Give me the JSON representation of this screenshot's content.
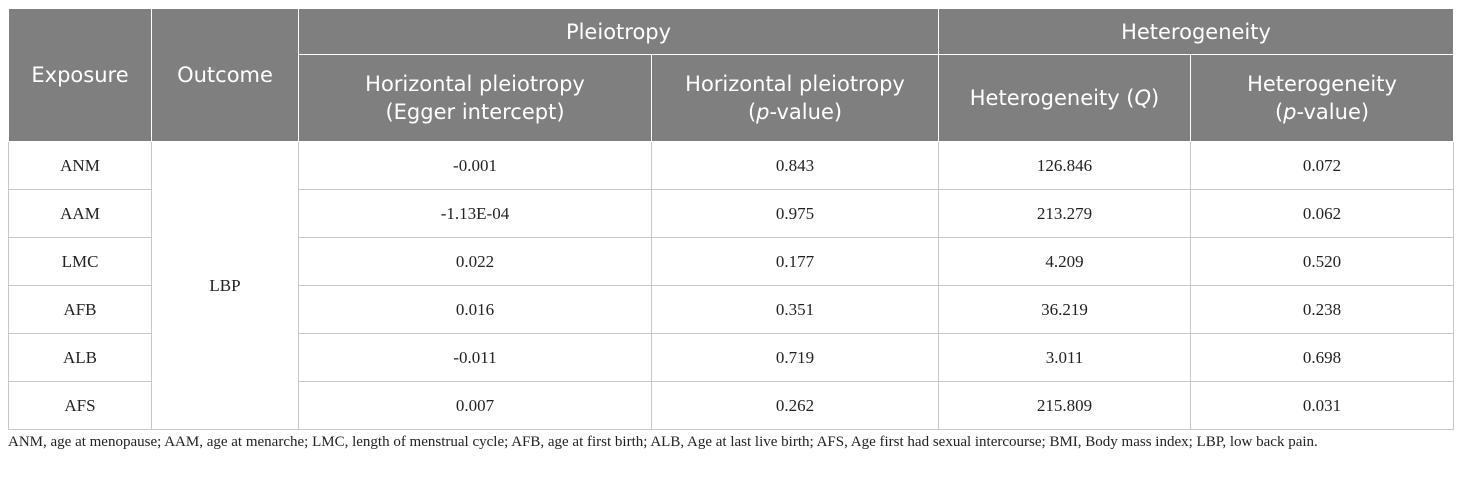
{
  "table": {
    "headers": {
      "exposure": "Exposure",
      "outcome": "Outcome",
      "pleiotropy_group": "Pleiotropy",
      "heterogeneity_group": "Heterogeneity",
      "col_hp_egger_1": "Horizontal pleiotropy",
      "col_hp_egger_2": "(Egger intercept)",
      "col_hp_p_1": "Horizontal pleiotropy",
      "col_hp_p_2a": "(",
      "col_hp_p_2b": "p",
      "col_hp_p_2c": "-value)",
      "col_het_q_a": "Heterogeneity (",
      "col_het_q_b": "Q",
      "col_het_q_c": ")",
      "col_het_p_1": "Heterogeneity",
      "col_het_p_2a": "(",
      "col_het_p_2b": "p",
      "col_het_p_2c": "-value)"
    },
    "outcome_value": "LBP",
    "rows": [
      {
        "exposure": "ANM",
        "egger": "-0.001",
        "hp_p": "0.843",
        "q": "126.846",
        "het_p": "0.072"
      },
      {
        "exposure": "AAM",
        "egger": "-1.13E-04",
        "hp_p": "0.975",
        "q": "213.279",
        "het_p": "0.062"
      },
      {
        "exposure": "LMC",
        "egger": "0.022",
        "hp_p": "0.177",
        "q": "4.209",
        "het_p": "0.520"
      },
      {
        "exposure": "AFB",
        "egger": "0.016",
        "hp_p": "0.351",
        "q": "36.219",
        "het_p": "0.238"
      },
      {
        "exposure": "ALB",
        "egger": "-0.011",
        "hp_p": "0.719",
        "q": "3.011",
        "het_p": "0.698"
      },
      {
        "exposure": "AFS",
        "egger": "0.007",
        "hp_p": "0.262",
        "q": "215.809",
        "het_p": "0.031"
      }
    ]
  },
  "footnote": "ANM, age at menopause; AAM, age at menarche; LMC, length of menstrual cycle; AFB, age at first birth; ALB, Age at last live birth; AFS, Age first had sexual intercourse; BMI, Body mass index; LBP, low back pain."
}
